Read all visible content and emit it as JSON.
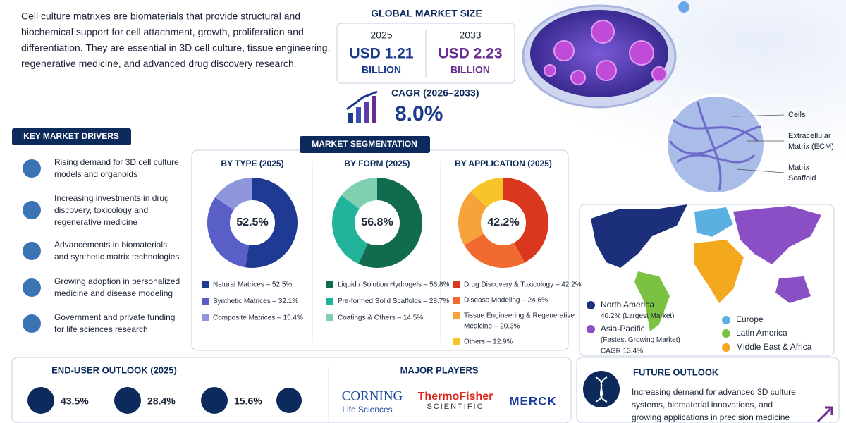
{
  "intro": [
    "Cell culture matrixes are biomaterials that provide structural and",
    "biochemical support for cell attachment, growth, proliferation and",
    "differentiation. They are essential in 3D cell culture, tissue engineering,",
    "regenerative medicine, and advanced drug discovery research."
  ],
  "market_size": {
    "title": "GLOBAL MARKET SIZE",
    "columns": [
      {
        "year": "2025",
        "value": "USD 1.21",
        "unit": "BILLION",
        "color": "#1a3a8c"
      },
      {
        "year": "2033",
        "value": "USD 2.23",
        "unit": "BILLION",
        "color": "#6a2c91"
      }
    ],
    "cagr_label": "CAGR (2026–2033)",
    "cagr_value": "8.0%"
  },
  "image_labels": [
    [
      "Cells"
    ],
    [
      "Extracellular",
      "Matrix (ECM)"
    ],
    [
      "Matrix",
      "Scaffold"
    ]
  ],
  "drivers": {
    "title": "KEY MARKET DRIVERS",
    "items": [
      [
        "Rising demand for 3D cell culture",
        "models and organoids"
      ],
      [
        "Increasing investments in drug",
        "discovery, toxicology and",
        "regenerative medicine"
      ],
      [
        "Advancements in biomaterials",
        "and synthetic matrix technologies"
      ],
      [
        "Growing adoption in personalized",
        "medicine and disease modeling"
      ],
      [
        "Government and private funding",
        "for life sciences research"
      ]
    ]
  },
  "segmentation": {
    "title": "MARKET SEGMENTATION",
    "charts": [
      {
        "title": "BY TYPE (2025)",
        "center_label": "52.5%",
        "segments": [
          {
            "label": [
              "Natural Matrices – 52.5%"
            ],
            "value": 52.5,
            "color": "#1f3a93"
          },
          {
            "label": [
              "Synthetic Matrices – 32.1%"
            ],
            "value": 32.1,
            "color": "#5a5fc8"
          },
          {
            "label": [
              "Composite Matrices – 15.4%"
            ],
            "value": 15.4,
            "color": "#8f96dc"
          }
        ]
      },
      {
        "title": "BY FORM (2025)",
        "center_label": "56.8%",
        "segments": [
          {
            "label": [
              "Liquid / Solution Hydrogels – 56.8%"
            ],
            "value": 56.8,
            "color": "#106b4f"
          },
          {
            "label": [
              "Pre-formed Solid Scaffolds – 28.7%"
            ],
            "value": 28.7,
            "color": "#22b39a"
          },
          {
            "label": [
              "Coatings & Others – 14.5%"
            ],
            "value": 14.5,
            "color": "#7fd0b0"
          }
        ]
      },
      {
        "title": "BY APPLICATION (2025)",
        "center_label": "42.2%",
        "segments": [
          {
            "label": [
              "Drug Discovery & Toxicology – 42.2%"
            ],
            "value": 42.2,
            "color": "#d9381e"
          },
          {
            "label": [
              "Disease Modeling – 24.6%"
            ],
            "value": 24.6,
            "color": "#f06a32"
          },
          {
            "label": [
              "Tissue Engineering & Regenerative",
              "Medicine – 20.3%"
            ],
            "value": 20.3,
            "color": "#f5a33a"
          },
          {
            "label": [
              "Others – 12.9%"
            ],
            "value": 12.9,
            "color": "#f8c42a"
          }
        ]
      }
    ]
  },
  "regions": [
    {
      "lines": [
        "North America",
        "40.2% (Largest Market)"
      ],
      "color": "#1c2f7a"
    },
    {
      "lines": [
        "Asia-Pacific",
        "(Fastest Growing Market)",
        "CAGR 13.4%"
      ],
      "color": "#8a4fc4"
    },
    {
      "lines": [
        "Europe"
      ],
      "color": "#5ab0e0"
    },
    {
      "lines": [
        "Latin America"
      ],
      "color": "#7cc242"
    },
    {
      "lines": [
        "Middle East & Africa"
      ],
      "color": "#f3a81e"
    }
  ],
  "end_user": {
    "title": "END-USER OUTLOOK (2025)",
    "items": [
      "43.5%",
      "28.4%",
      "15.6%"
    ]
  },
  "players": {
    "title": "MAJOR PLAYERS",
    "logos": [
      [
        "CORNING",
        "Life Sciences"
      ],
      [
        "ThermoFisher",
        "SCIENTIFIC"
      ],
      [
        "MERCK"
      ]
    ]
  },
  "future": {
    "title": "FUTURE OUTLOOK",
    "lines": [
      "Increasing demand for advanced 3D culture",
      "systems, biomaterial innovations, and",
      "growing applications in precision medicine"
    ]
  }
}
